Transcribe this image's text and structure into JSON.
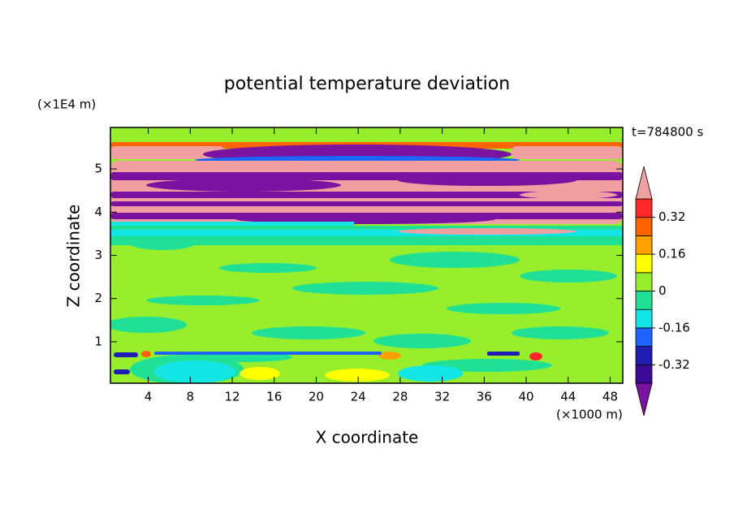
{
  "chart_data": {
    "type": "contour",
    "title": "potential temperature deviation",
    "x_label": "X coordinate",
    "y_label": "Z coordinate",
    "x_unit": "(×1000 m)",
    "y_unit": "(×1E4 m)",
    "annotation": "t=784800 s",
    "xlim": [
      0.4,
      49.2
    ],
    "xticks": [
      4,
      8,
      12,
      16,
      20,
      24,
      28,
      32,
      36,
      40,
      44,
      48
    ],
    "ylim": [
      0.04,
      5.96
    ],
    "yticks": [
      1,
      2,
      3,
      4,
      5
    ],
    "colorbar": {
      "levels": [
        -0.4,
        -0.32,
        -0.24,
        -0.16,
        -0.08,
        0,
        0.08,
        0.16,
        0.24,
        0.32,
        0.4
      ],
      "colors": [
        "#7a14a0",
        "#3c0a96",
        "#1e1eb4",
        "#1e64ff",
        "#14e6e6",
        "#20e096",
        "#96ee2c",
        "#ffff00",
        "#ffa000",
        "#ff6400",
        "#ff2828",
        "#f0a0a0"
      ],
      "ticks": [
        -0.32,
        -0.16,
        0,
        0.16,
        0.32
      ]
    }
  }
}
